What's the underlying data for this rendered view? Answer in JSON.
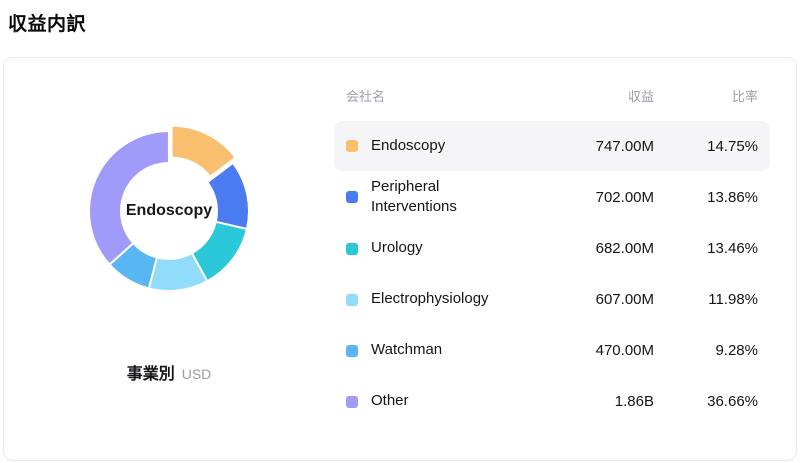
{
  "page": {
    "title": "収益内訳"
  },
  "table": {
    "headers": {
      "name": "会社名",
      "revenue": "収益",
      "ratio": "比率"
    }
  },
  "chart_data": {
    "type": "pie",
    "donut": true,
    "title": "収益内訳",
    "center_label": "Endoscopy",
    "caption": "事業別",
    "unit": "USD",
    "start_angle_deg": -90,
    "legend_position": "right-table",
    "rows": [
      {
        "name": "Endoscopy",
        "revenue": "747.00M",
        "percent": 14.75,
        "ratio_label": "14.75%",
        "color": "#f9bf6e",
        "highlighted": true
      },
      {
        "name": "Peripheral Interventions",
        "revenue": "702.00M",
        "percent": 13.86,
        "ratio_label": "13.86%",
        "color": "#4a7bf0",
        "highlighted": false
      },
      {
        "name": "Urology",
        "revenue": "682.00M",
        "percent": 13.46,
        "ratio_label": "13.46%",
        "color": "#2bc8da",
        "highlighted": false
      },
      {
        "name": "Electrophysiology",
        "revenue": "607.00M",
        "percent": 11.98,
        "ratio_label": "11.98%",
        "color": "#90dcfa",
        "highlighted": false
      },
      {
        "name": "Watchman",
        "revenue": "470.00M",
        "percent": 9.28,
        "ratio_label": "9.28%",
        "color": "#58b7f3",
        "highlighted": false
      },
      {
        "name": "Other",
        "revenue": "1.86B",
        "percent": 36.66,
        "ratio_label": "36.66%",
        "color": "#a09bf8",
        "highlighted": false
      }
    ]
  }
}
